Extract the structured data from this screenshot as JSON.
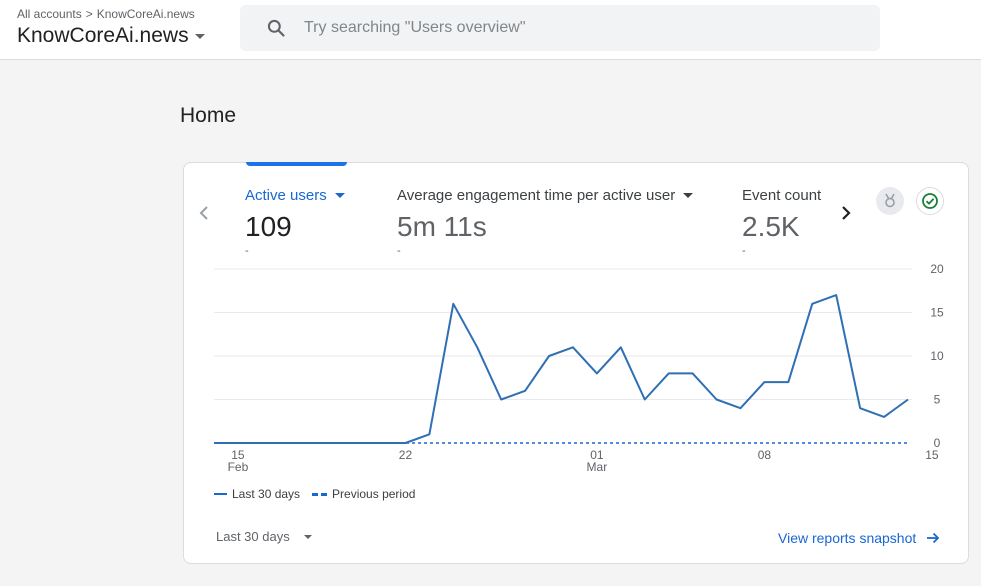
{
  "header": {
    "breadcrumb_root": "All accounts",
    "breadcrumb_separator": ">",
    "breadcrumb_account": "KnowCoreAi.news",
    "property_name": "KnowCoreAi.news",
    "search_placeholder": "Try searching \"Users overview\""
  },
  "page": {
    "title": "Home"
  },
  "metrics": [
    {
      "label": "Active users",
      "value": "109",
      "sub": "-"
    },
    {
      "label": "Average engagement time per active user",
      "value": "5m 11s",
      "sub": "-"
    },
    {
      "label": "Event count",
      "value": "2.5K",
      "sub": "-"
    }
  ],
  "legend": {
    "current": "Last 30 days",
    "previous": "Previous period"
  },
  "footer": {
    "range_label": "Last 30 days",
    "view_link": "View reports snapshot"
  },
  "colors": {
    "accent": "#1967d2",
    "line": "#2f6fb3",
    "grid": "#e8eaed"
  },
  "chart_data": {
    "type": "line",
    "title": "Active users",
    "x_tick_labels": [
      {
        "label": "15",
        "sublabel": "Feb",
        "index": 1
      },
      {
        "label": "22",
        "sublabel": "",
        "index": 8
      },
      {
        "label": "01",
        "sublabel": "Mar",
        "index": 16
      },
      {
        "label": "08",
        "sublabel": "",
        "index": 23
      },
      {
        "label": "15",
        "sublabel": "",
        "index": 30
      }
    ],
    "yticks": [
      0,
      5,
      10,
      15,
      20
    ],
    "ylim": [
      0,
      20
    ],
    "series": [
      {
        "name": "Last 30 days",
        "values": [
          0,
          0,
          0,
          0,
          0,
          0,
          0,
          0,
          0,
          1,
          16,
          11,
          5,
          6,
          10,
          11,
          8,
          11,
          5,
          8,
          8,
          5,
          4,
          7,
          7,
          16,
          17,
          4,
          3,
          5
        ]
      },
      {
        "name": "Previous period",
        "values": [
          0,
          0,
          0,
          0,
          0,
          0,
          0,
          0,
          0,
          0,
          0,
          0,
          0,
          0,
          0,
          0,
          0,
          0,
          0,
          0,
          0,
          0,
          0,
          0,
          0,
          0,
          0,
          0,
          0,
          0
        ]
      }
    ]
  }
}
